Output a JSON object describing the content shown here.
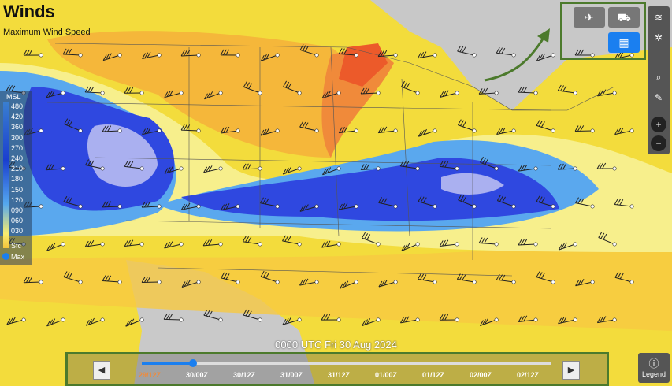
{
  "header": {
    "title": "Winds",
    "subtitle": "Maximum Wind Speed"
  },
  "altitude_legend": {
    "title": "MSL",
    "levels": [
      "480",
      "420",
      "360",
      "300",
      "270",
      "240",
      "210",
      "180",
      "150",
      "120",
      "090",
      "060",
      "030"
    ],
    "surface": "Sfc",
    "max": "Max"
  },
  "timeline": {
    "current": "0000 UTC Fri 30 Aug 2024",
    "steps": [
      "29/12Z",
      "30/00Z",
      "30/12Z",
      "31/00Z",
      "31/12Z",
      "01/00Z",
      "01/12Z",
      "02/00Z",
      "02/12Z"
    ]
  },
  "legend_button": "Legend"
}
